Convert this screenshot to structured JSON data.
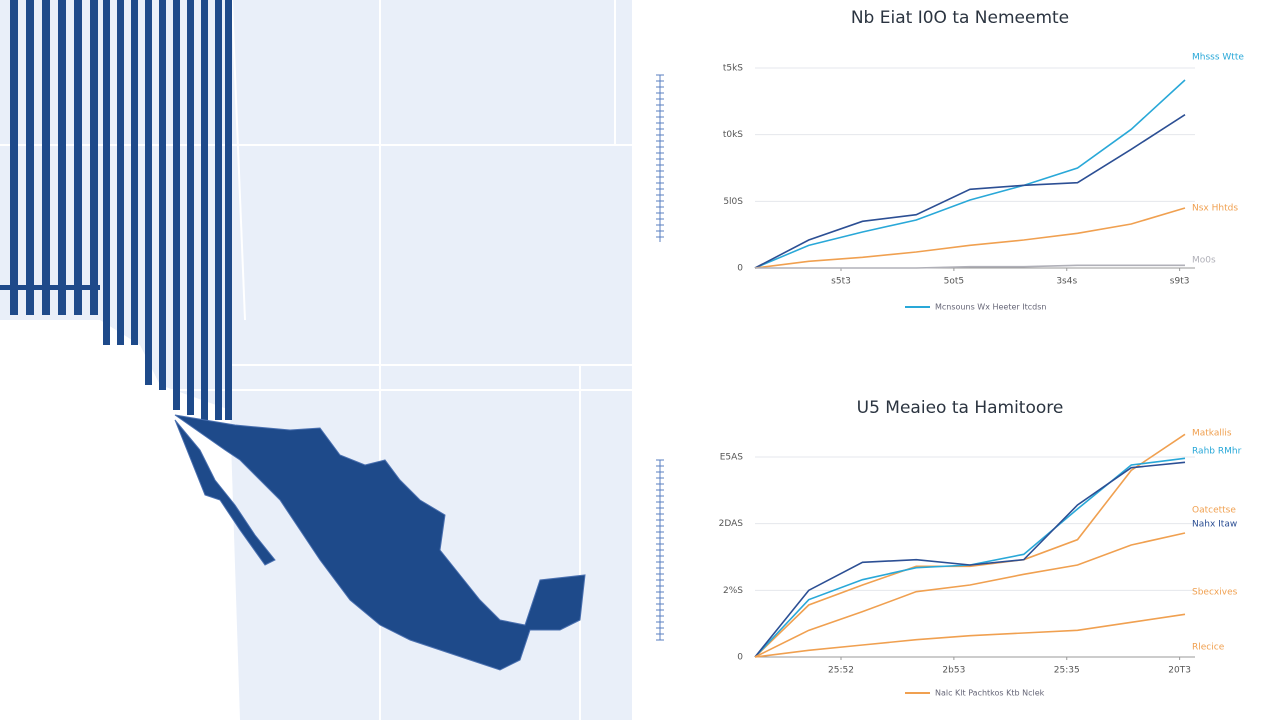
{
  "chart_data": [
    {
      "type": "line",
      "title": "Nb Eiat I0O ta Nemeemte",
      "x": [
        0,
        1,
        2,
        3,
        4,
        5,
        6,
        7,
        8
      ],
      "xlim": [
        0,
        8
      ],
      "xticks": [
        {
          "value": 1.6,
          "label": "s5t3"
        },
        {
          "value": 3.7,
          "label": "5ot5"
        },
        {
          "value": 5.8,
          "label": "3s4s"
        },
        {
          "value": 7.9,
          "label": "s9t3"
        }
      ],
      "ylim": [
        0,
        150
      ],
      "yticks": [
        0,
        {
          "value": 50,
          "label": "5l0S"
        },
        {
          "value": 100,
          "label": "t0kS"
        },
        {
          "value": 150,
          "label": "t5kS"
        }
      ],
      "grid": true,
      "legend_label": "Mcnsouns Wx Heeter Itcdsn",
      "series": [
        {
          "name": "Mhsss Wtte",
          "color": "#29a8d8",
          "values": [
            0,
            17,
            27,
            36,
            51,
            62,
            75,
            104,
            141
          ]
        },
        {
          "color": "#2c4f94",
          "values": [
            0,
            21,
            35,
            40,
            59,
            62,
            64,
            89,
            115
          ]
        },
        {
          "name": "Nsx Hhtds",
          "color": "#f0a050",
          "values": [
            0,
            5,
            8,
            12,
            17,
            21,
            26,
            33,
            45
          ]
        },
        {
          "name": "Mo0s",
          "color": "#b0b0b8",
          "values": [
            0,
            0,
            0,
            0,
            1,
            1,
            2,
            2,
            2
          ]
        }
      ]
    },
    {
      "type": "line",
      "title": "U5 Meaieo ta Hamitoore",
      "x": [
        0,
        1,
        2,
        3,
        4,
        5,
        6,
        7,
        8
      ],
      "xlim": [
        0,
        8
      ],
      "xticks": [
        {
          "value": 1.6,
          "label": "25:52"
        },
        {
          "value": 3.7,
          "label": "2b53"
        },
        {
          "value": 5.8,
          "label": "25:35"
        },
        {
          "value": 7.9,
          "label": "20T3"
        }
      ],
      "ylim": [
        0,
        150
      ],
      "yticks": [
        0,
        {
          "value": 50,
          "label": "2%S"
        },
        {
          "value": 100,
          "label": "2DAS"
        },
        {
          "value": 150,
          "label": "E5AS"
        }
      ],
      "grid": true,
      "legend_label": "Nalc Klt Pachtkos Ktb Nclek",
      "annotation": "Rlecice",
      "series": [
        {
          "name": "Matkallis",
          "color": "#f0a050",
          "values": [
            0,
            39,
            54,
            68,
            68,
            73,
            88,
            140,
            167
          ]
        },
        {
          "name": "Rahb RMhr",
          "color": "#29a8d8",
          "values": [
            0,
            43,
            58,
            67,
            69,
            77,
            111,
            144,
            149
          ]
        },
        {
          "name": "Nahx Itaw",
          "color": "#2c4f94",
          "values": [
            0,
            50,
            71,
            73,
            69,
            73,
            114,
            142,
            146
          ]
        },
        {
          "name": "Oatcettse",
          "color": "#f0a050",
          "values": [
            0,
            20,
            34,
            49,
            54,
            62,
            69,
            84,
            93
          ]
        },
        {
          "name": "Sbecxives",
          "color": "#f0a050",
          "values": [
            0,
            5,
            9,
            13,
            16,
            18,
            20,
            26,
            32
          ]
        }
      ]
    }
  ]
}
